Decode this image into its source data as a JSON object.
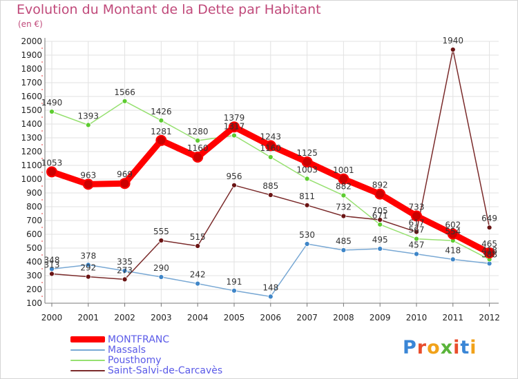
{
  "header": {
    "title": "Evolution du Montant de la Dette par Habitant",
    "subtitle": "(en €)"
  },
  "logo": {
    "text": "Proxiti",
    "letters": [
      {
        "ch": "P",
        "color": "#3a86d6"
      },
      {
        "ch": "r",
        "color": "#e94d2c"
      },
      {
        "ch": "o",
        "color": "#f1a21a"
      },
      {
        "ch": "x",
        "color": "#5ab43a"
      },
      {
        "ch": "i",
        "color": "#e94d2c"
      },
      {
        "ch": "t",
        "color": "#3a86d6"
      },
      {
        "ch": "i",
        "color": "#f1a21a"
      }
    ]
  },
  "chart_data": {
    "type": "line",
    "title": "Evolution du Montant de la Dette par Habitant",
    "subtitle": "(en €)",
    "x": [
      "2000",
      "2001",
      "2002",
      "2003",
      "2004",
      "2005",
      "2006",
      "2007",
      "2008",
      "2009",
      "2010",
      "2011",
      "2012"
    ],
    "ylim": [
      100,
      2000
    ],
    "yticks": [
      100,
      200,
      300,
      400,
      500,
      600,
      700,
      800,
      900,
      1000,
      1100,
      1200,
      1300,
      1400,
      1500,
      1600,
      1700,
      1800,
      1900,
      2000
    ],
    "grid": true,
    "legend_position": "bottom-left",
    "series": [
      {
        "name": "MONTFRANC",
        "color": "#ff0000",
        "marker": "#cc0000",
        "width": 9,
        "markerRadius": 7,
        "values": [
          1053,
          963,
          969,
          1281,
          1160,
          1379,
          1243,
          1125,
          1001,
          892,
          733,
          602,
          465
        ]
      },
      {
        "name": "Massals",
        "color": "#78a8d4",
        "marker": "#3f86c8",
        "width": 1.5,
        "markerRadius": 3.5,
        "values": [
          348,
          378,
          335,
          290,
          242,
          191,
          148,
          530,
          485,
          495,
          457,
          418,
          388
        ]
      },
      {
        "name": "Pousthomy",
        "color": "#96e070",
        "marker": "#5dcc30",
        "width": 1.5,
        "markerRadius": 3.5,
        "values": [
          1490,
          1393,
          1566,
          1426,
          1280,
          1317,
          1160,
          1003,
          882,
          671,
          567,
          554,
          418
        ]
      },
      {
        "name": "Saint-Salvi-de-Carcavès",
        "color": "#7a2a2a",
        "marker": "#6a1414",
        "width": 1.5,
        "markerRadius": 3.5,
        "values": [
          313,
          292,
          273,
          555,
          515,
          956,
          885,
          811,
          732,
          705,
          617,
          1940,
          649
        ]
      }
    ]
  }
}
